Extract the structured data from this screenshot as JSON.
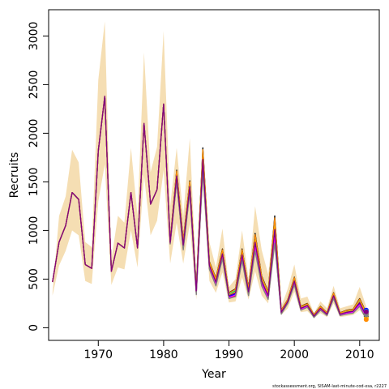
{
  "chart_data": {
    "type": "line",
    "xlabel": "Year",
    "ylabel": "Recruits",
    "xlim": [
      1962.4,
      2013.0
    ],
    "ylim": [
      -130,
      3270
    ],
    "x_ticks": [
      1970,
      1980,
      1990,
      2000,
      2010
    ],
    "y_ticks": [
      0,
      500,
      1000,
      1500,
      2000,
      2500,
      3000
    ],
    "footer": "stockassessment.org, SISAM-last-minute-cod-xsa, r2227",
    "colors": {
      "band": "#f5deb3",
      "series": [
        "#000000",
        "#ff0000",
        "#00cd00",
        "#0000ff",
        "#00bfff",
        "#ff00ff",
        "#ffd700",
        "#808080",
        "#ff8c00",
        "#800080"
      ]
    },
    "years": [
      1963,
      1964,
      1965,
      1966,
      1967,
      1968,
      1969,
      1970,
      1971,
      1972,
      1973,
      1974,
      1975,
      1976,
      1977,
      1978,
      1979,
      1980,
      1981,
      1982,
      1983,
      1984,
      1985,
      1986,
      1987,
      1988,
      1989,
      1990,
      1991,
      1992,
      1993,
      1994,
      1995,
      1996,
      1997,
      1998,
      1999,
      2000,
      2001,
      2002,
      2003,
      2004,
      2005,
      2006,
      2007,
      2008,
      2009,
      2010,
      2011
    ],
    "recruits": [
      470,
      880,
      1050,
      1390,
      1320,
      650,
      610,
      1820,
      2380,
      580,
      870,
      820,
      1390,
      820,
      2100,
      1270,
      1420,
      2300,
      880,
      1560,
      850,
      1450,
      380,
      1730,
      640,
      470,
      760,
      330,
      360,
      750,
      370,
      880,
      480,
      330,
      1010,
      160,
      270,
      480,
      200,
      230,
      120,
      200,
      140,
      330,
      140,
      160,
      170,
      260,
      120
    ],
    "band_upper": [
      360,
      1150,
      1350,
      1830,
      1700,
      880,
      830,
      2550,
      3150,
      700,
      1150,
      1080,
      1850,
      1150,
      2830,
      1600,
      1860,
      3050,
      1250,
      1850,
      1150,
      1950,
      500,
      1850,
      880,
      620,
      1020,
      420,
      500,
      1000,
      500,
      1250,
      800,
      550,
      1120,
      220,
      400,
      650,
      300,
      320,
      150,
      270,
      200,
      430,
      200,
      220,
      240,
      420,
      220
    ],
    "band_lower": [
      330,
      640,
      790,
      1000,
      950,
      480,
      450,
      1300,
      1680,
      440,
      620,
      600,
      1000,
      620,
      1570,
      950,
      1100,
      1620,
      660,
      1080,
      660,
      1070,
      290,
      1470,
      480,
      360,
      570,
      260,
      270,
      520,
      290,
      580,
      330,
      250,
      800,
      130,
      200,
      370,
      160,
      170,
      100,
      150,
      110,
      250,
      110,
      120,
      130,
      180,
      90
    ],
    "spread": [
      0,
      0,
      0,
      0,
      0,
      0,
      0,
      0,
      0,
      0,
      0,
      0,
      0,
      0,
      0,
      0,
      0,
      0,
      20,
      60,
      50,
      60,
      40,
      120,
      40,
      40,
      50,
      30,
      40,
      60,
      40,
      90,
      50,
      40,
      140,
      20,
      20,
      40,
      20,
      20,
      15,
      20,
      15,
      30,
      15,
      20,
      20,
      40,
      35
    ]
  }
}
